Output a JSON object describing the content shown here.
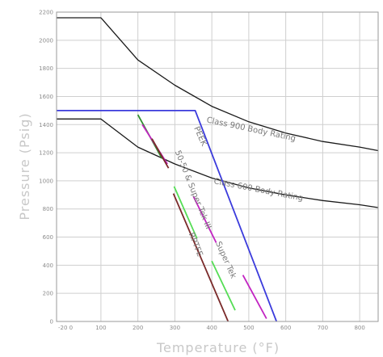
{
  "chart_data": {
    "type": "line",
    "title": "",
    "xlabel": "Temperature  (°F)",
    "ylabel": "Pressure  (Psig)",
    "xlim": [
      -20,
      850
    ],
    "ylim": [
      0,
      2200
    ],
    "grid": true,
    "x_ticks": [
      {
        "value": -20,
        "label": "-20 0"
      },
      {
        "value": 100,
        "label": "100"
      },
      {
        "value": 200,
        "label": "200"
      },
      {
        "value": 300,
        "label": "300"
      },
      {
        "value": 400,
        "label": "400"
      },
      {
        "value": 500,
        "label": "500"
      },
      {
        "value": 600,
        "label": "600"
      },
      {
        "value": 700,
        "label": "700"
      },
      {
        "value": 800,
        "label": "800"
      }
    ],
    "y_ticks": [
      0,
      200,
      400,
      600,
      800,
      1000,
      1200,
      1400,
      1600,
      1800,
      2000,
      2200
    ],
    "series": [
      {
        "name": "Class 900 Body Rating",
        "color": "#1a1a1a",
        "width": 1.3,
        "x": [
          -20,
          100,
          200,
          300,
          400,
          500,
          600,
          700,
          800,
          850
        ],
        "y": [
          2160,
          2160,
          1860,
          1680,
          1530,
          1420,
          1340,
          1280,
          1240,
          1215
        ]
      },
      {
        "name": "Class 600 Body Rating",
        "color": "#1a1a1a",
        "width": 1.3,
        "x": [
          -20,
          100,
          200,
          300,
          400,
          500,
          600,
          700,
          800,
          850
        ],
        "y": [
          1440,
          1440,
          1240,
          1120,
          1020,
          950,
          900,
          860,
          830,
          810
        ]
      },
      {
        "name": "PEEK",
        "color": "#3b3bdc",
        "width": 1.8,
        "x": [
          -20,
          355,
          575
        ],
        "y": [
          1500,
          1500,
          0
        ]
      },
      {
        "name": "",
        "color": "#2f8f2f",
        "width": 1.8,
        "x": [
          200,
          265
        ],
        "y": [
          1470,
          1160
        ]
      },
      {
        "name": "",
        "color": "#c223c2",
        "width": 1.8,
        "x": [
          212,
          280
        ],
        "y": [
          1400,
          1120
        ]
      },
      {
        "name": "",
        "color": "#7a2a2a",
        "width": 1.8,
        "x": [
          238,
          283
        ],
        "y": [
          1300,
          1090
        ]
      },
      {
        "name": "50-50 & Super Tek III",
        "color": "#55dd55",
        "width": 1.8,
        "x": [
          298,
          360
        ],
        "y": [
          960,
          590
        ]
      },
      {
        "name": "",
        "color": "#c223c2",
        "width": 1.8,
        "x": [
          350,
          412
        ],
        "y": [
          890,
          560
        ]
      },
      {
        "name": "RPTFE",
        "color": "#7a2a2a",
        "width": 1.8,
        "x": [
          296,
          444
        ],
        "y": [
          910,
          0
        ]
      },
      {
        "name": "Super Tek",
        "color": "#55dd55",
        "width": 1.8,
        "x": [
          400,
          463
        ],
        "y": [
          430,
          80
        ]
      },
      {
        "name": "",
        "color": "#c223c2",
        "width": 1.8,
        "x": [
          484,
          548
        ],
        "y": [
          330,
          20
        ]
      }
    ],
    "annotations": [
      {
        "text": "Class 900 Body Rating",
        "x": 505,
        "y": 1350,
        "angle": 12
      },
      {
        "text": "Class 600 Body Rating",
        "x": 525,
        "y": 920,
        "angle": 11
      },
      {
        "text": "PEEK",
        "x": 363,
        "y": 1310,
        "angle": 66
      },
      {
        "text": "50-50 & Super Tek III",
        "x": 343,
        "y": 930,
        "angle": 68
      },
      {
        "text": "RPTFE",
        "x": 350,
        "y": 540,
        "angle": 68
      },
      {
        "text": "Super Tek",
        "x": 432,
        "y": 430,
        "angle": 66
      }
    ]
  }
}
